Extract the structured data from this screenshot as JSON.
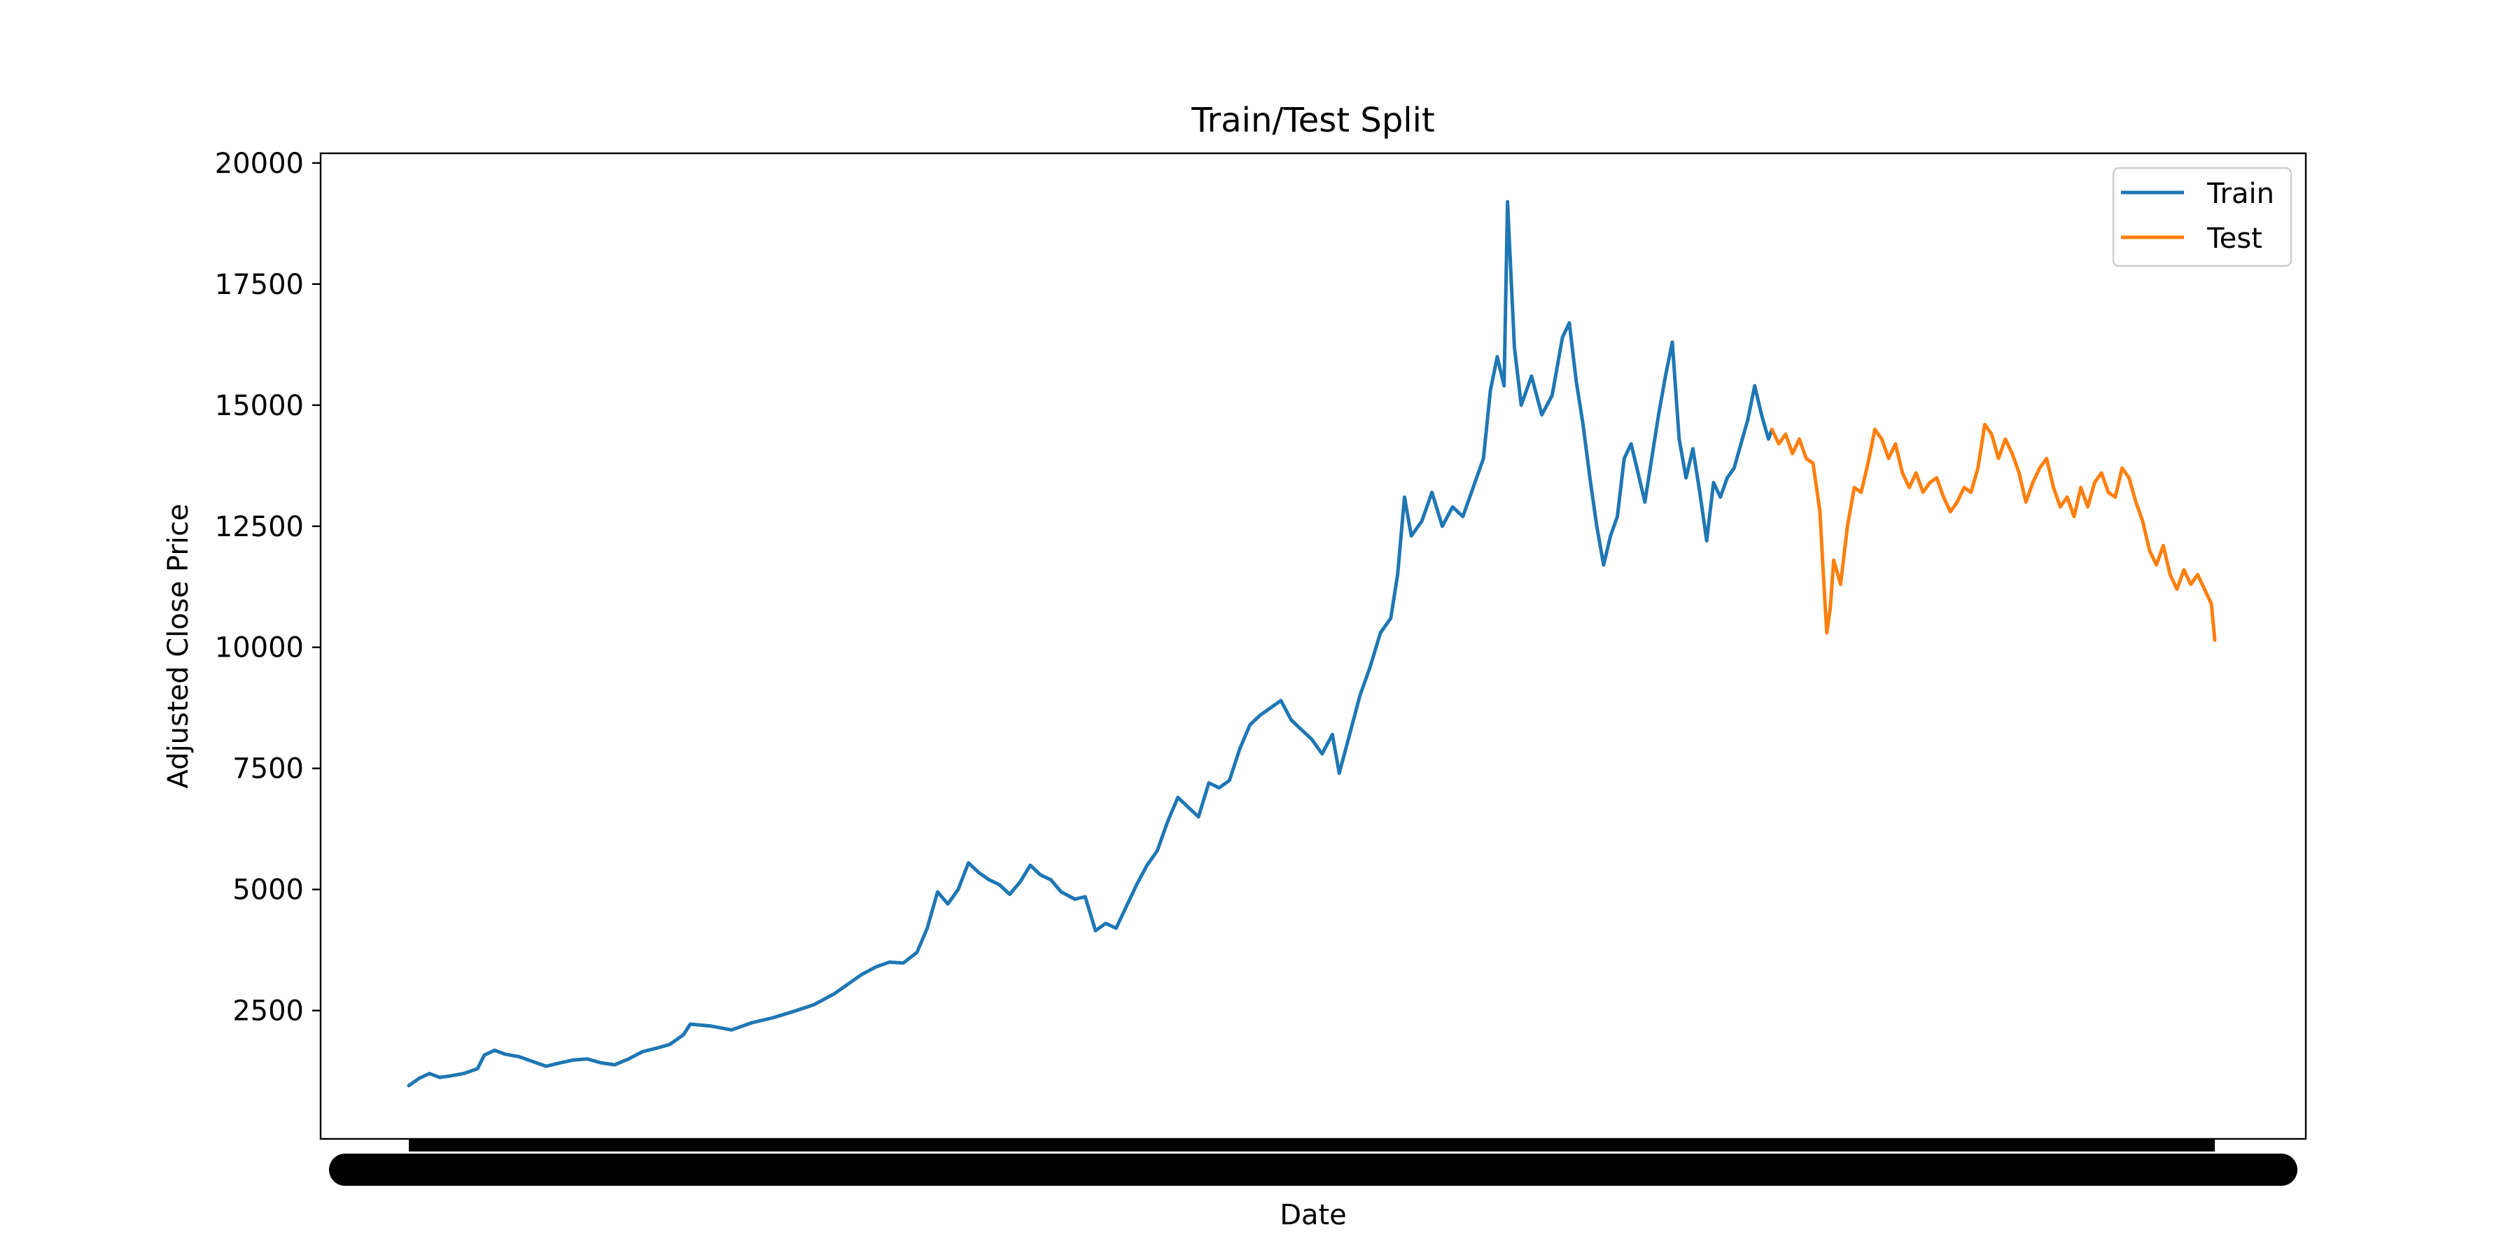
{
  "chart_data": {
    "type": "line",
    "title": "Train/Test Split",
    "xlabel": "Date",
    "ylabel": "Adjusted Close Price",
    "ylim": [
      -150,
      20200
    ],
    "yticks": [
      2500,
      5000,
      7500,
      10000,
      12500,
      15000,
      17500,
      20000
    ],
    "ytick_labels": [
      "2500",
      "5000",
      "7500",
      "10000",
      "12500",
      "15000",
      "17500",
      "20000"
    ],
    "x_tick_labels_note": "dense overlapping date tick labels render as a solid black band",
    "grid": false,
    "legend_position": "top-right",
    "series": [
      {
        "name": "Train",
        "color": "#1f77b4",
        "points": [
          [
            0,
            950
          ],
          [
            15,
            1100
          ],
          [
            30,
            1200
          ],
          [
            45,
            1120
          ],
          [
            60,
            1150
          ],
          [
            80,
            1200
          ],
          [
            100,
            1300
          ],
          [
            110,
            1580
          ],
          [
            125,
            1680
          ],
          [
            140,
            1600
          ],
          [
            160,
            1550
          ],
          [
            180,
            1450
          ],
          [
            200,
            1350
          ],
          [
            220,
            1420
          ],
          [
            240,
            1480
          ],
          [
            260,
            1500
          ],
          [
            280,
            1420
          ],
          [
            300,
            1380
          ],
          [
            320,
            1500
          ],
          [
            340,
            1650
          ],
          [
            360,
            1720
          ],
          [
            380,
            1800
          ],
          [
            400,
            2000
          ],
          [
            410,
            2220
          ],
          [
            440,
            2180
          ],
          [
            470,
            2100
          ],
          [
            500,
            2250
          ],
          [
            530,
            2350
          ],
          [
            560,
            2480
          ],
          [
            590,
            2620
          ],
          [
            620,
            2850
          ],
          [
            640,
            3050
          ],
          [
            660,
            3250
          ],
          [
            680,
            3400
          ],
          [
            700,
            3500
          ],
          [
            720,
            3480
          ],
          [
            740,
            3700
          ],
          [
            755,
            4200
          ],
          [
            770,
            4950
          ],
          [
            785,
            4700
          ],
          [
            800,
            5000
          ],
          [
            815,
            5550
          ],
          [
            830,
            5350
          ],
          [
            845,
            5200
          ],
          [
            860,
            5100
          ],
          [
            875,
            4900
          ],
          [
            890,
            5150
          ],
          [
            905,
            5500
          ],
          [
            920,
            5300
          ],
          [
            935,
            5200
          ],
          [
            950,
            4950
          ],
          [
            970,
            4800
          ],
          [
            985,
            4850
          ],
          [
            1000,
            4150
          ],
          [
            1015,
            4300
          ],
          [
            1030,
            4200
          ],
          [
            1045,
            4650
          ],
          [
            1060,
            5100
          ],
          [
            1075,
            5500
          ],
          [
            1090,
            5800
          ],
          [
            1105,
            6400
          ],
          [
            1120,
            6900
          ],
          [
            1135,
            6700
          ],
          [
            1150,
            6500
          ],
          [
            1165,
            7200
          ],
          [
            1180,
            7100
          ],
          [
            1195,
            7250
          ],
          [
            1210,
            7900
          ],
          [
            1225,
            8400
          ],
          [
            1240,
            8600
          ],
          [
            1255,
            8750
          ],
          [
            1270,
            8900
          ],
          [
            1285,
            8500
          ],
          [
            1300,
            8300
          ],
          [
            1315,
            8100
          ],
          [
            1330,
            7800
          ],
          [
            1345,
            8200
          ],
          [
            1355,
            7400
          ],
          [
            1370,
            8200
          ],
          [
            1385,
            9000
          ],
          [
            1400,
            9600
          ],
          [
            1415,
            10300
          ],
          [
            1430,
            10600
          ],
          [
            1440,
            11500
          ],
          [
            1450,
            13100
          ],
          [
            1460,
            12300
          ],
          [
            1475,
            12600
          ],
          [
            1490,
            13200
          ],
          [
            1505,
            12500
          ],
          [
            1520,
            12900
          ],
          [
            1535,
            12700
          ],
          [
            1550,
            13300
          ],
          [
            1565,
            13900
          ],
          [
            1575,
            15300
          ],
          [
            1585,
            16000
          ],
          [
            1595,
            15400
          ],
          [
            1600,
            19200
          ],
          [
            1610,
            16200
          ],
          [
            1620,
            15000
          ],
          [
            1635,
            15600
          ],
          [
            1650,
            14800
          ],
          [
            1665,
            15200
          ],
          [
            1680,
            16400
          ],
          [
            1690,
            16700
          ],
          [
            1700,
            15500
          ],
          [
            1710,
            14600
          ],
          [
            1720,
            13500
          ],
          [
            1730,
            12500
          ],
          [
            1740,
            11700
          ],
          [
            1750,
            12300
          ],
          [
            1760,
            12700
          ],
          [
            1770,
            13900
          ],
          [
            1780,
            14200
          ],
          [
            1790,
            13600
          ],
          [
            1800,
            13000
          ],
          [
            1810,
            13900
          ],
          [
            1820,
            14800
          ],
          [
            1830,
            15600
          ],
          [
            1840,
            16300
          ],
          [
            1850,
            14300
          ],
          [
            1860,
            13500
          ],
          [
            1870,
            14100
          ],
          [
            1880,
            13200
          ],
          [
            1890,
            12200
          ],
          [
            1900,
            13400
          ],
          [
            1910,
            13100
          ],
          [
            1920,
            13500
          ],
          [
            1930,
            13700
          ],
          [
            1940,
            14200
          ],
          [
            1950,
            14700
          ],
          [
            1960,
            15400
          ],
          [
            1970,
            14800
          ],
          [
            1980,
            14300
          ],
          [
            1985,
            14500
          ]
        ]
      },
      {
        "name": "Test",
        "color": "#ff7f0e",
        "points": [
          [
            1985,
            14500
          ],
          [
            1995,
            14200
          ],
          [
            2005,
            14400
          ],
          [
            2015,
            14000
          ],
          [
            2025,
            14300
          ],
          [
            2035,
            13900
          ],
          [
            2045,
            13800
          ],
          [
            2055,
            12800
          ],
          [
            2060,
            11500
          ],
          [
            2065,
            10300
          ],
          [
            2070,
            10800
          ],
          [
            2075,
            11800
          ],
          [
            2085,
            11300
          ],
          [
            2095,
            12500
          ],
          [
            2105,
            13300
          ],
          [
            2115,
            13200
          ],
          [
            2125,
            13800
          ],
          [
            2135,
            14500
          ],
          [
            2145,
            14300
          ],
          [
            2155,
            13900
          ],
          [
            2165,
            14200
          ],
          [
            2175,
            13600
          ],
          [
            2185,
            13300
          ],
          [
            2195,
            13600
          ],
          [
            2205,
            13200
          ],
          [
            2215,
            13400
          ],
          [
            2225,
            13500
          ],
          [
            2235,
            13100
          ],
          [
            2245,
            12800
          ],
          [
            2255,
            13000
          ],
          [
            2265,
            13300
          ],
          [
            2275,
            13200
          ],
          [
            2285,
            13700
          ],
          [
            2295,
            14600
          ],
          [
            2305,
            14400
          ],
          [
            2315,
            13900
          ],
          [
            2325,
            14300
          ],
          [
            2335,
            14000
          ],
          [
            2345,
            13600
          ],
          [
            2355,
            13000
          ],
          [
            2365,
            13400
          ],
          [
            2375,
            13700
          ],
          [
            2385,
            13900
          ],
          [
            2395,
            13300
          ],
          [
            2405,
            12900
          ],
          [
            2415,
            13100
          ],
          [
            2425,
            12700
          ],
          [
            2435,
            13300
          ],
          [
            2445,
            12900
          ],
          [
            2455,
            13400
          ],
          [
            2465,
            13600
          ],
          [
            2475,
            13200
          ],
          [
            2485,
            13100
          ],
          [
            2495,
            13700
          ],
          [
            2505,
            13500
          ],
          [
            2515,
            13000
          ],
          [
            2525,
            12600
          ],
          [
            2535,
            12000
          ],
          [
            2545,
            11700
          ],
          [
            2555,
            12100
          ],
          [
            2565,
            11500
          ],
          [
            2575,
            11200
          ],
          [
            2585,
            11600
          ],
          [
            2595,
            11300
          ],
          [
            2605,
            11500
          ],
          [
            2615,
            11200
          ],
          [
            2625,
            10900
          ],
          [
            2630,
            10150
          ]
        ]
      }
    ]
  }
}
